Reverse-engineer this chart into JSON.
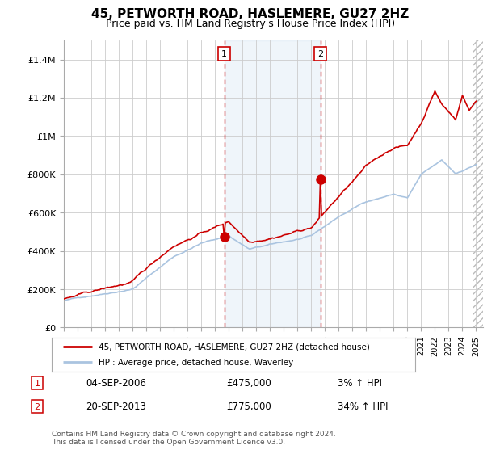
{
  "title": "45, PETWORTH ROAD, HASLEMERE, GU27 2HZ",
  "subtitle": "Price paid vs. HM Land Registry's House Price Index (HPI)",
  "sale1_date": "04-SEP-2006",
  "sale1_price": 475000,
  "sale1_pct": "3%",
  "sale2_date": "20-SEP-2013",
  "sale2_price": 775000,
  "sale2_pct": "34%",
  "legend1": "45, PETWORTH ROAD, HASLEMERE, GU27 2HZ (detached house)",
  "legend2": "HPI: Average price, detached house, Waverley",
  "footer": "Contains HM Land Registry data © Crown copyright and database right 2024.\nThis data is licensed under the Open Government Licence v3.0.",
  "hpi_color": "#aac4e0",
  "price_color": "#cc0000",
  "sale_marker_color": "#cc0000",
  "bg_color": "#ffffff",
  "grid_color": "#cccccc",
  "highlight_color": "#ddeeff",
  "ylim_max": 1500000,
  "start_year": 1995,
  "end_year": 2025
}
